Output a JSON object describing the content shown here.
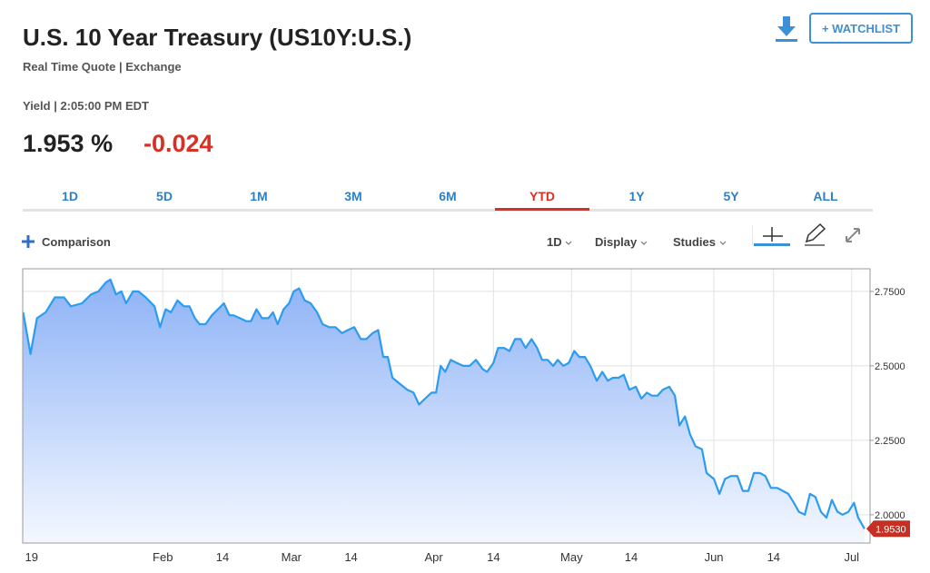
{
  "header": {
    "title": "U.S. 10 Year Treasury (US10Y:U.S.)",
    "subtitle": "Real Time Quote | Exchange",
    "yield_label": "Yield | 2:05:00 PM EDT",
    "price": "1.953",
    "price_unit": "%",
    "change": "-0.024",
    "watchlist": "+ WATCHLIST"
  },
  "tabs": {
    "items": [
      "1D",
      "5D",
      "1M",
      "3M",
      "6M",
      "YTD",
      "1Y",
      "5Y",
      "ALL"
    ],
    "active": 5
  },
  "toolbar": {
    "comparison": "Comparison",
    "interval": "1D",
    "display": "Display",
    "studies": "Studies"
  },
  "chart_data": {
    "type": "area",
    "color": "#2b9cf0",
    "grid": true,
    "x": [
      0.6,
      2.2,
      3.6,
      5.5,
      7.5,
      9.5,
      11,
      13.4,
      15.4,
      17,
      18.6,
      19.6,
      20.8,
      22,
      23,
      24.5,
      25.7,
      27.3,
      29.2,
      30.4,
      31.6,
      32.8,
      34.2,
      35.6,
      36.8,
      38,
      39,
      40.3,
      41.7,
      43,
      44.3,
      45.5,
      46.4,
      47.8,
      49.2,
      50.2,
      51.4,
      52.6,
      54,
      55,
      56,
      57.3,
      58.5,
      59.5,
      60.7,
      61.9,
      63.2,
      64.6,
      65.8,
      67.2,
      68.6,
      70,
      71.3,
      72.7,
      74.1,
      75.3,
      76.7,
      77.9,
      79,
      80,
      81,
      82.6,
      84.2,
      85.6,
      86.8,
      88.1,
      89.5,
      90.5,
      91.5,
      92.5,
      93.7,
      95,
      96.4,
      97.8,
      99.2,
      100.6,
      101.6,
      103,
      104,
      105.3,
      106.5,
      107.7,
      108.9,
      110,
      111.3,
      112.5,
      113.6,
      114.8,
      116,
      117,
      118.2,
      119.4,
      120.6,
      121.7,
      122.9,
      124.1,
      125.5,
      126.7,
      127.9,
      129,
      130.2,
      131.4,
      132.6,
      134,
      135.2,
      136.4,
      137.5,
      138.7,
      139.9,
      141.3,
      142.5,
      143.5,
      144.7,
      145.8,
      147,
      148.4,
      149.4,
      151,
      152.2,
      153.4,
      154.7,
      156.1,
      157.3,
      158.5,
      159.7,
      161,
      162.2,
      163.4,
      164.8,
      166,
      167.2,
      168.4,
      169.5,
      170.8,
      171.9,
      173.1,
      174.3,
      175.5,
      176.7,
      177.9,
      179,
      180.3,
      181.5,
      182.4,
      183.8
    ],
    "values": [
      2.68,
      2.54,
      2.66,
      2.68,
      2.73,
      2.73,
      2.7,
      2.71,
      2.74,
      2.75,
      2.78,
      2.79,
      2.74,
      2.75,
      2.71,
      2.75,
      2.75,
      2.73,
      2.7,
      2.63,
      2.69,
      2.68,
      2.72,
      2.7,
      2.7,
      2.66,
      2.64,
      2.64,
      2.67,
      2.69,
      2.71,
      2.67,
      2.67,
      2.66,
      2.65,
      2.65,
      2.69,
      2.66,
      2.66,
      2.68,
      2.64,
      2.69,
      2.71,
      2.75,
      2.76,
      2.72,
      2.71,
      2.68,
      2.64,
      2.63,
      2.63,
      2.61,
      2.62,
      2.63,
      2.59,
      2.59,
      2.61,
      2.62,
      2.53,
      2.53,
      2.46,
      2.44,
      2.42,
      2.41,
      2.37,
      2.39,
      2.41,
      2.41,
      2.5,
      2.48,
      2.52,
      2.51,
      2.5,
      2.5,
      2.52,
      2.49,
      2.48,
      2.51,
      2.56,
      2.56,
      2.55,
      2.59,
      2.59,
      2.56,
      2.59,
      2.56,
      2.52,
      2.52,
      2.5,
      2.52,
      2.5,
      2.51,
      2.55,
      2.53,
      2.53,
      2.5,
      2.45,
      2.48,
      2.45,
      2.46,
      2.46,
      2.47,
      2.42,
      2.43,
      2.39,
      2.41,
      2.4,
      2.4,
      2.42,
      2.43,
      2.4,
      2.3,
      2.33,
      2.27,
      2.23,
      2.22,
      2.14,
      2.12,
      2.07,
      2.12,
      2.13,
      2.13,
      2.08,
      2.08,
      2.14,
      2.14,
      2.13,
      2.09,
      2.09,
      2.08,
      2.07,
      2.04,
      2.01,
      2.0,
      2.07,
      2.06,
      2.01,
      1.99,
      2.05,
      2.01,
      2.0,
      2.01,
      2.04,
      1.99,
      1.953
    ],
    "last_label": {
      "value": 1.953,
      "label": "1.9530"
    },
    "xlim": [
      0.5,
      185
    ],
    "xticks": [
      {
        "value": 1,
        "label": "19"
      },
      {
        "value": 31,
        "label": "Feb"
      },
      {
        "value": 44,
        "label": "14"
      },
      {
        "value": 59,
        "label": "Mar"
      },
      {
        "value": 72,
        "label": "14"
      },
      {
        "value": 90,
        "label": "Apr"
      },
      {
        "value": 103,
        "label": "14"
      },
      {
        "value": 120,
        "label": "May"
      },
      {
        "value": 133,
        "label": "14"
      },
      {
        "value": 151,
        "label": "Jun"
      },
      {
        "value": 164,
        "label": "14"
      },
      {
        "value": 181,
        "label": "Jul"
      }
    ],
    "ylim": [
      1.905,
      2.826
    ],
    "yticks": [
      {
        "value": 2.0,
        "label": "2.0000"
      },
      {
        "value": 2.25,
        "label": "2.2500"
      },
      {
        "value": 2.5,
        "label": "2.5000"
      },
      {
        "value": 2.75,
        "label": "2.7500"
      }
    ]
  }
}
